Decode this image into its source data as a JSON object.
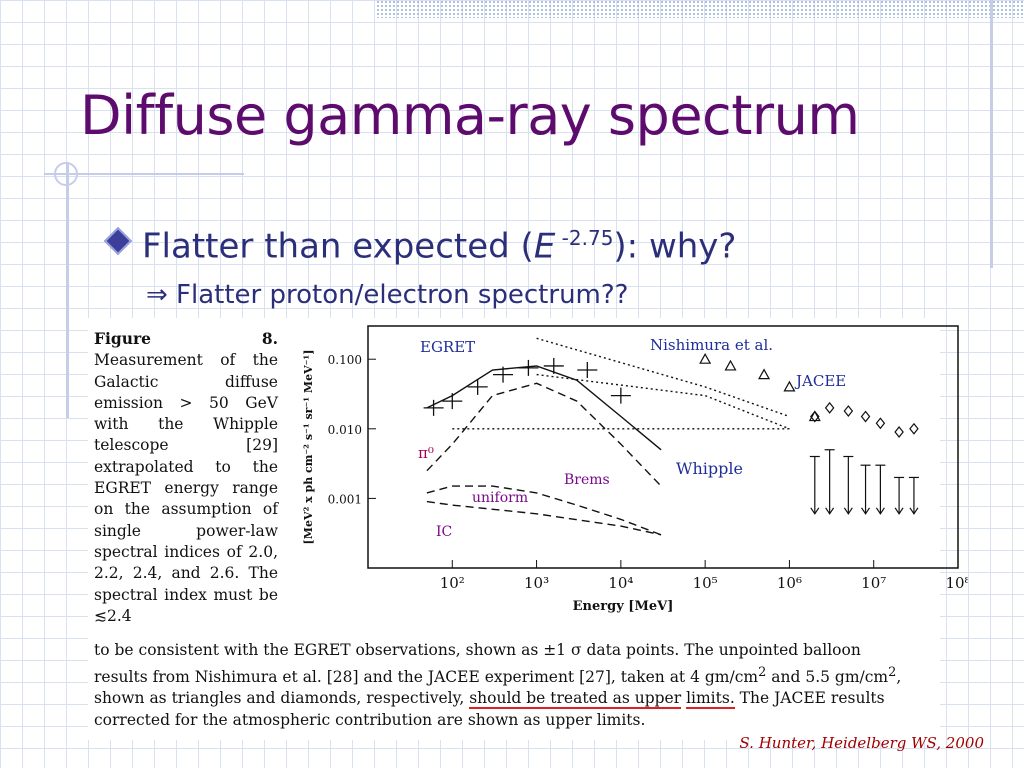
{
  "slide": {
    "title": "Diffuse gamma-ray spectrum",
    "bullet": {
      "lead": "Flatter than expected (",
      "var": "E",
      "exponent": " -2.75",
      "tail": "): why?"
    },
    "sub": "⇒ Flatter proton/electron spectrum??",
    "credit": "S. Hunter, Heidelberg WS, 2000"
  },
  "figure_text": {
    "label": "Figure 8.",
    "side_text": "Measurement of the Galactic diffuse emission > 50 GeV with the Whipple telescope [29] extrapolated to the EGRET energy range on the assumption of single power-law spectral indices of 2.0, 2.2, 2.4, and 2.6. The spectral index must be ≲2.4",
    "caption_a": "to be consistent with the EGRET observations, shown as ±1 σ data points. The unpointed balloon results from Nishimura et al. [28] and the JACEE experiment [27], taken at 4 gm/cm",
    "caption_sup1": "2",
    "caption_b": " and 5.5 gm/cm",
    "caption_sup2": "2",
    "caption_c": ", shown as triangles and diamonds, respectively, ",
    "caption_underlined_1": "should be treated as upper",
    "caption_underlined_2": "limits.",
    "caption_d": " The JACEE results corrected for the atmospheric contribution are shown as upper limits."
  },
  "chart_data": {
    "type": "line",
    "xlabel": "Energy [MeV]",
    "ylabel": "[MeV² x ph cm⁻² s⁻¹ sr⁻¹ MeV⁻¹]",
    "x_scale": "log",
    "y_scale": "log",
    "xlim": [
      10,
      100000000
    ],
    "ylim": [
      0.0001,
      0.3
    ],
    "x_tick_labels": [
      "10²",
      "10³",
      "10⁴",
      "10⁵",
      "10⁶",
      "10⁷",
      "10⁸"
    ],
    "x_tick_values": [
      100,
      1000,
      10000,
      100000,
      1000000,
      10000000,
      100000000
    ],
    "y_tick_labels": [
      "0.100",
      "0.010",
      "0.001"
    ],
    "y_tick_values": [
      0.1,
      0.01,
      0.001
    ],
    "annotations": [
      {
        "text": "EGRET",
        "color": "#1f2d9a"
      },
      {
        "text": "Nishimura et al.",
        "color": "#1f2d9a"
      },
      {
        "text": "JACEE",
        "color": "#1f2d9a"
      },
      {
        "text": "Whipple",
        "color": "#1f2d9a"
      },
      {
        "text": "Brems",
        "color": "#7a0a8a"
      },
      {
        "text": "uniform",
        "color": "#7a0a8a"
      },
      {
        "text": "IC",
        "color": "#7a0a8a"
      },
      {
        "text": "π⁰",
        "color": "#a0005a"
      }
    ],
    "series": [
      {
        "style": "dashed",
        "x": [
          50,
          100,
          300,
          1000,
          3000,
          10000,
          30000
        ],
        "y": [
          0.0025,
          0.006,
          0.03,
          0.045,
          0.025,
          0.006,
          0.0015
        ]
      },
      {
        "style": "dashed",
        "x": [
          50,
          100,
          300,
          1000,
          3000,
          10000,
          30000
        ],
        "y": [
          0.0012,
          0.0015,
          0.0015,
          0.0012,
          0.0008,
          0.0005,
          0.0003
        ]
      },
      {
        "style": "dashed",
        "x": [
          50,
          100,
          1000,
          10000,
          30000
        ],
        "y": [
          0.0009,
          0.0008,
          0.0006,
          0.0004,
          0.0003
        ]
      },
      {
        "style": "solid",
        "x": [
          50,
          100,
          300,
          1000,
          3000,
          10000,
          30000
        ],
        "y": [
          0.02,
          0.03,
          0.07,
          0.08,
          0.05,
          0.015,
          0.005
        ]
      },
      {
        "style": "dotted",
        "x": [
          1000,
          100000,
          1000000
        ],
        "y": [
          0.2,
          0.04,
          0.015
        ]
      },
      {
        "style": "dotted",
        "x": [
          1000,
          100000,
          1000000
        ],
        "y": [
          0.06,
          0.03,
          0.01
        ]
      },
      {
        "style": "dotted",
        "x": [
          100,
          1000000
        ],
        "y": [
          0.01,
          0.01
        ]
      }
    ],
    "egret_points": {
      "x": [
        60,
        100,
        200,
        400,
        800,
        1600,
        4000,
        10000
      ],
      "y": [
        0.02,
        0.025,
        0.04,
        0.06,
        0.075,
        0.08,
        0.07,
        0.03
      ]
    },
    "nishimura_triangles": {
      "x": [
        100000,
        200000,
        500000,
        1000000,
        2000000
      ],
      "y": [
        0.1,
        0.08,
        0.06,
        0.04,
        0.015
      ]
    },
    "jacee_diamonds": {
      "x": [
        2000000,
        3000000,
        5000000,
        8000000,
        12000000,
        20000000,
        30000000
      ],
      "y": [
        0.015,
        0.02,
        0.018,
        0.015,
        0.012,
        0.009,
        0.01
      ]
    },
    "upper_limits": {
      "x": [
        2000000,
        3000000,
        5000000,
        8000000,
        12000000,
        20000000,
        30000000
      ],
      "y": [
        0.004,
        0.005,
        0.004,
        0.003,
        0.003,
        0.002,
        0.002
      ]
    }
  }
}
